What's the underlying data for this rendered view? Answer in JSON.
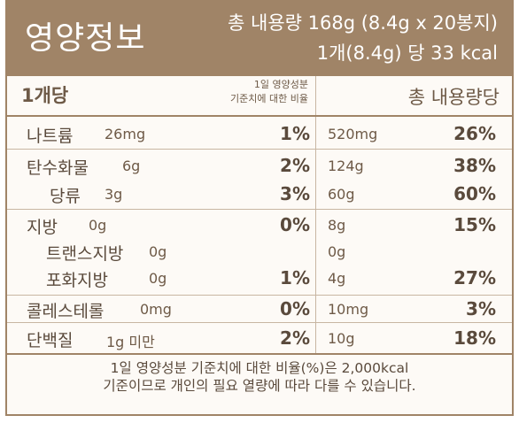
{
  "header": {
    "title": "영양정보",
    "total": "총 내용량 168g (8.4g x 20봉지)",
    "per": "1개(8.4g) 당 33 kcal"
  },
  "subheader": {
    "per_unit": "1개당",
    "note_line1": "1일 영양성분",
    "note_line2": "기준치에 대한 비율",
    "total_label": "총 내용량당"
  },
  "nutrients": [
    {
      "name": "나트륨",
      "amount": "26mg",
      "pct": "1%",
      "total_amount": "520mg",
      "total_pct": "26%"
    },
    {
      "name": "탄수화물",
      "amount": "6g",
      "pct": "2%",
      "total_amount": "124g",
      "total_pct": "38%"
    },
    {
      "name": "당류",
      "amount": "3g",
      "pct": "3%",
      "total_amount": "60g",
      "total_pct": "60%"
    },
    {
      "name": "지방",
      "amount": "0g",
      "pct": "0%",
      "total_amount": "8g",
      "total_pct": "15%"
    },
    {
      "name": "트랜스지방",
      "amount": "0g",
      "pct": "",
      "total_amount": "0g",
      "total_pct": ""
    },
    {
      "name": "포화지방",
      "amount": "0g",
      "pct": "1%",
      "total_amount": "4g",
      "total_pct": "27%"
    },
    {
      "name": "콜레스테롤",
      "amount": "0mg",
      "pct": "0%",
      "total_amount": "10mg",
      "total_pct": "3%"
    },
    {
      "name": "단백질",
      "amount": "1g 미만",
      "pct": "2%",
      "total_amount": "10g",
      "total_pct": "18%"
    }
  ],
  "footer": {
    "line1": "1일 영양성분 기준치에 대한 비율(%)은 2,000kcal",
    "line2": "기준이므로 개인의 필요 열량에 따라 다를 수 있습니다."
  }
}
